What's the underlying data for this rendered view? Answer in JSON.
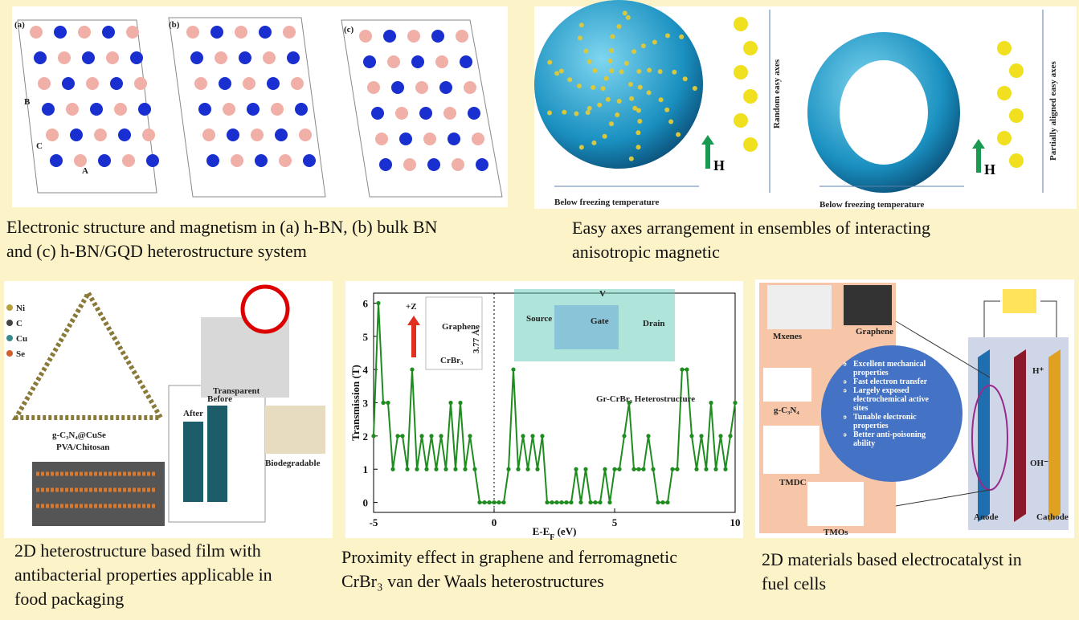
{
  "panels": [
    {
      "caption": [
        "Electronic structure and magnetism in (a) h-BN, (b) bulk BN",
        "and (c) h-BN/GQD heterostructure system"
      ],
      "labels": [
        "(a)",
        "(b)",
        "(c)",
        "B",
        "C",
        "A"
      ]
    },
    {
      "caption": [
        "Easy axes arrangement in ensembles of interacting",
        "anisotropic magnetic"
      ],
      "labels": [
        "Random easy axes",
        "Partially aligned easy axes",
        "Below freezing temperature",
        "Below freezing temperature",
        "H",
        "H"
      ]
    },
    {
      "caption": [
        "2D heterostructure based film with",
        "antibacterial properties applicable in",
        "food packaging"
      ],
      "labels": [
        "Ni",
        "C",
        "Cu",
        "Se",
        "g-C₃N₄@CuSe",
        "PVA/Chitosan",
        "Transparent",
        "Biodegradable",
        "After",
        "Before"
      ]
    },
    {
      "caption": [
        "Proximity effect in graphene and ferromagnetic",
        "CrBr₃ van der Waals heterostructures"
      ],
      "labels": [
        "+Z",
        "Graphene",
        "CrBr₃",
        "3.77 Å",
        "Source",
        "Gate",
        "Drain",
        "V",
        "Gr-CrBr₃ Heterostructure"
      ]
    },
    {
      "caption": [
        "2D materials based electrocatalyst in",
        "fuel cells"
      ],
      "labels": [
        "Mxenes",
        "Graphene",
        "g-C₃N₄",
        "TMDC",
        "TMOs",
        "H⁺",
        "OH⁻",
        "Anode",
        "Cathode"
      ],
      "bullets": [
        "Excellent mechanical properties",
        "Fast electron transfer",
        "Largely exposed electrochemical active sites",
        "Tunable electronic properties",
        "Better anti-poisoning ability"
      ]
    }
  ],
  "chart_data": {
    "type": "line",
    "xlabel": [
      "E-E",
      "F",
      " (eV)"
    ],
    "ylabel": "Transmission (T)",
    "xlim": [
      -5,
      10
    ],
    "ylim": [
      -0.3,
      6.3
    ],
    "xticks": [
      -5,
      0,
      5,
      10
    ],
    "yticks": [
      0,
      1,
      2,
      3,
      4,
      5,
      6
    ],
    "series": [
      {
        "color": "#1e8c1e",
        "x": [
          -5,
          -4.8,
          -4.6,
          -4.4,
          -4.2,
          -4,
          -3.8,
          -3.6,
          -3.4,
          -3.2,
          -3,
          -2.8,
          -2.6,
          -2.4,
          -2.2,
          -2,
          -1.8,
          -1.6,
          -1.4,
          -1.2,
          -1,
          -0.8,
          -0.6,
          -0.4,
          -0.2,
          0,
          0.2,
          0.4,
          0.6,
          0.8,
          1,
          1.2,
          1.4,
          1.6,
          1.8,
          2,
          2.2,
          2.4,
          2.6,
          2.8,
          3,
          3.2,
          3.4,
          3.6,
          3.8,
          4,
          4.2,
          4.4,
          4.6,
          4.8,
          5,
          5.2,
          5.4,
          5.6,
          5.8,
          6,
          6.2,
          6.4,
          6.6,
          6.8,
          7,
          7.2,
          7.4,
          7.6,
          7.8,
          8,
          8.2,
          8.4,
          8.6,
          8.8,
          9,
          9.2,
          9.4,
          9.6,
          9.8,
          10
        ],
        "values": [
          2,
          6,
          3,
          3,
          1,
          2,
          2,
          1,
          4,
          1,
          2,
          1,
          2,
          1,
          2,
          1,
          3,
          1,
          3,
          1,
          2,
          1,
          0,
          0,
          0,
          0,
          0,
          0,
          1,
          4,
          1,
          2,
          1,
          2,
          1,
          2,
          0,
          0,
          0,
          0,
          0,
          0,
          1,
          0,
          1,
          0,
          0,
          0,
          1,
          0,
          1,
          1,
          2,
          3,
          1,
          1,
          1,
          2,
          1,
          0,
          0,
          0,
          1,
          1,
          4,
          4,
          2,
          1,
          2,
          1,
          3,
          1,
          2,
          1,
          2,
          3
        ]
      }
    ]
  }
}
